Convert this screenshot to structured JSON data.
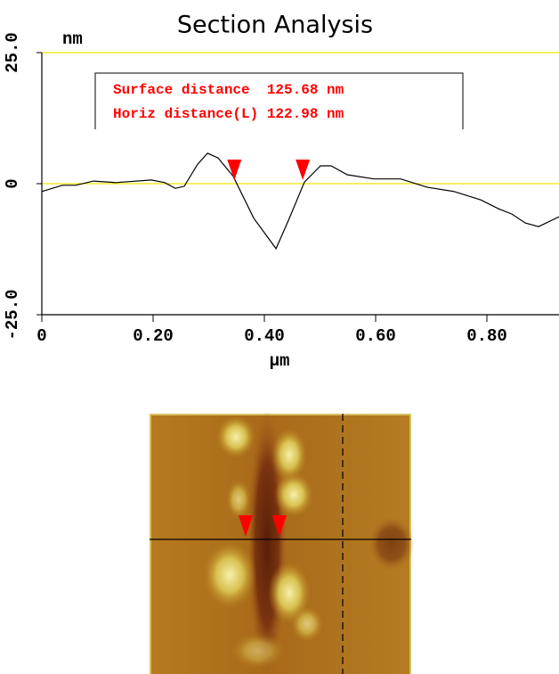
{
  "chart_data": {
    "type": "line",
    "title": "Section Analysis",
    "ylabel": "nm",
    "xlabel": "μm",
    "annotations": [
      "Surface distance  125.68 nm",
      "Horiz distance(L) 122.98 nm"
    ],
    "x": [
      0,
      0.037,
      0.061,
      0.093,
      0.133,
      0.197,
      0.221,
      0.24,
      0.256,
      0.28,
      0.298,
      0.317,
      0.344,
      0.381,
      0.421,
      0.445,
      0.472,
      0.501,
      0.52,
      0.549,
      0.597,
      0.645,
      0.693,
      0.741,
      0.789,
      0.821,
      0.845,
      0.869,
      0.893,
      0.93
    ],
    "values": [
      -1.5,
      -0.3,
      -0.3,
      0.5,
      0.2,
      0.7,
      0.2,
      -0.9,
      -0.5,
      3.7,
      5.8,
      4.9,
      1.4,
      -6.6,
      -12.4,
      -6.6,
      0.3,
      3.4,
      3.4,
      1.7,
      0.9,
      0.9,
      -0.7,
      -1.5,
      -3.1,
      -4.8,
      -5.8,
      -7.5,
      -8.2,
      -6.3
    ],
    "color": "#000000",
    "cursors": [
      0.346,
      0.469
    ],
    "cursor_color": "#ff0000",
    "xlim": [
      0,
      0.93
    ],
    "ylim": [
      -25,
      25
    ],
    "xticks": [
      0,
      {
        "value": 0.2,
        "label": "0.20"
      },
      {
        "value": 0.4,
        "label": "0.40"
      },
      {
        "value": 0.6,
        "label": "0.60"
      },
      {
        "value": 0.8,
        "label": "0.80"
      }
    ],
    "yticks": [
      {
        "value": 25,
        "label": "25.0"
      },
      0,
      {
        "value": -25,
        "label": "-25.0"
      }
    ],
    "reference_lines": [
      25,
      0
    ],
    "reference_color": "#e8e800"
  }
}
